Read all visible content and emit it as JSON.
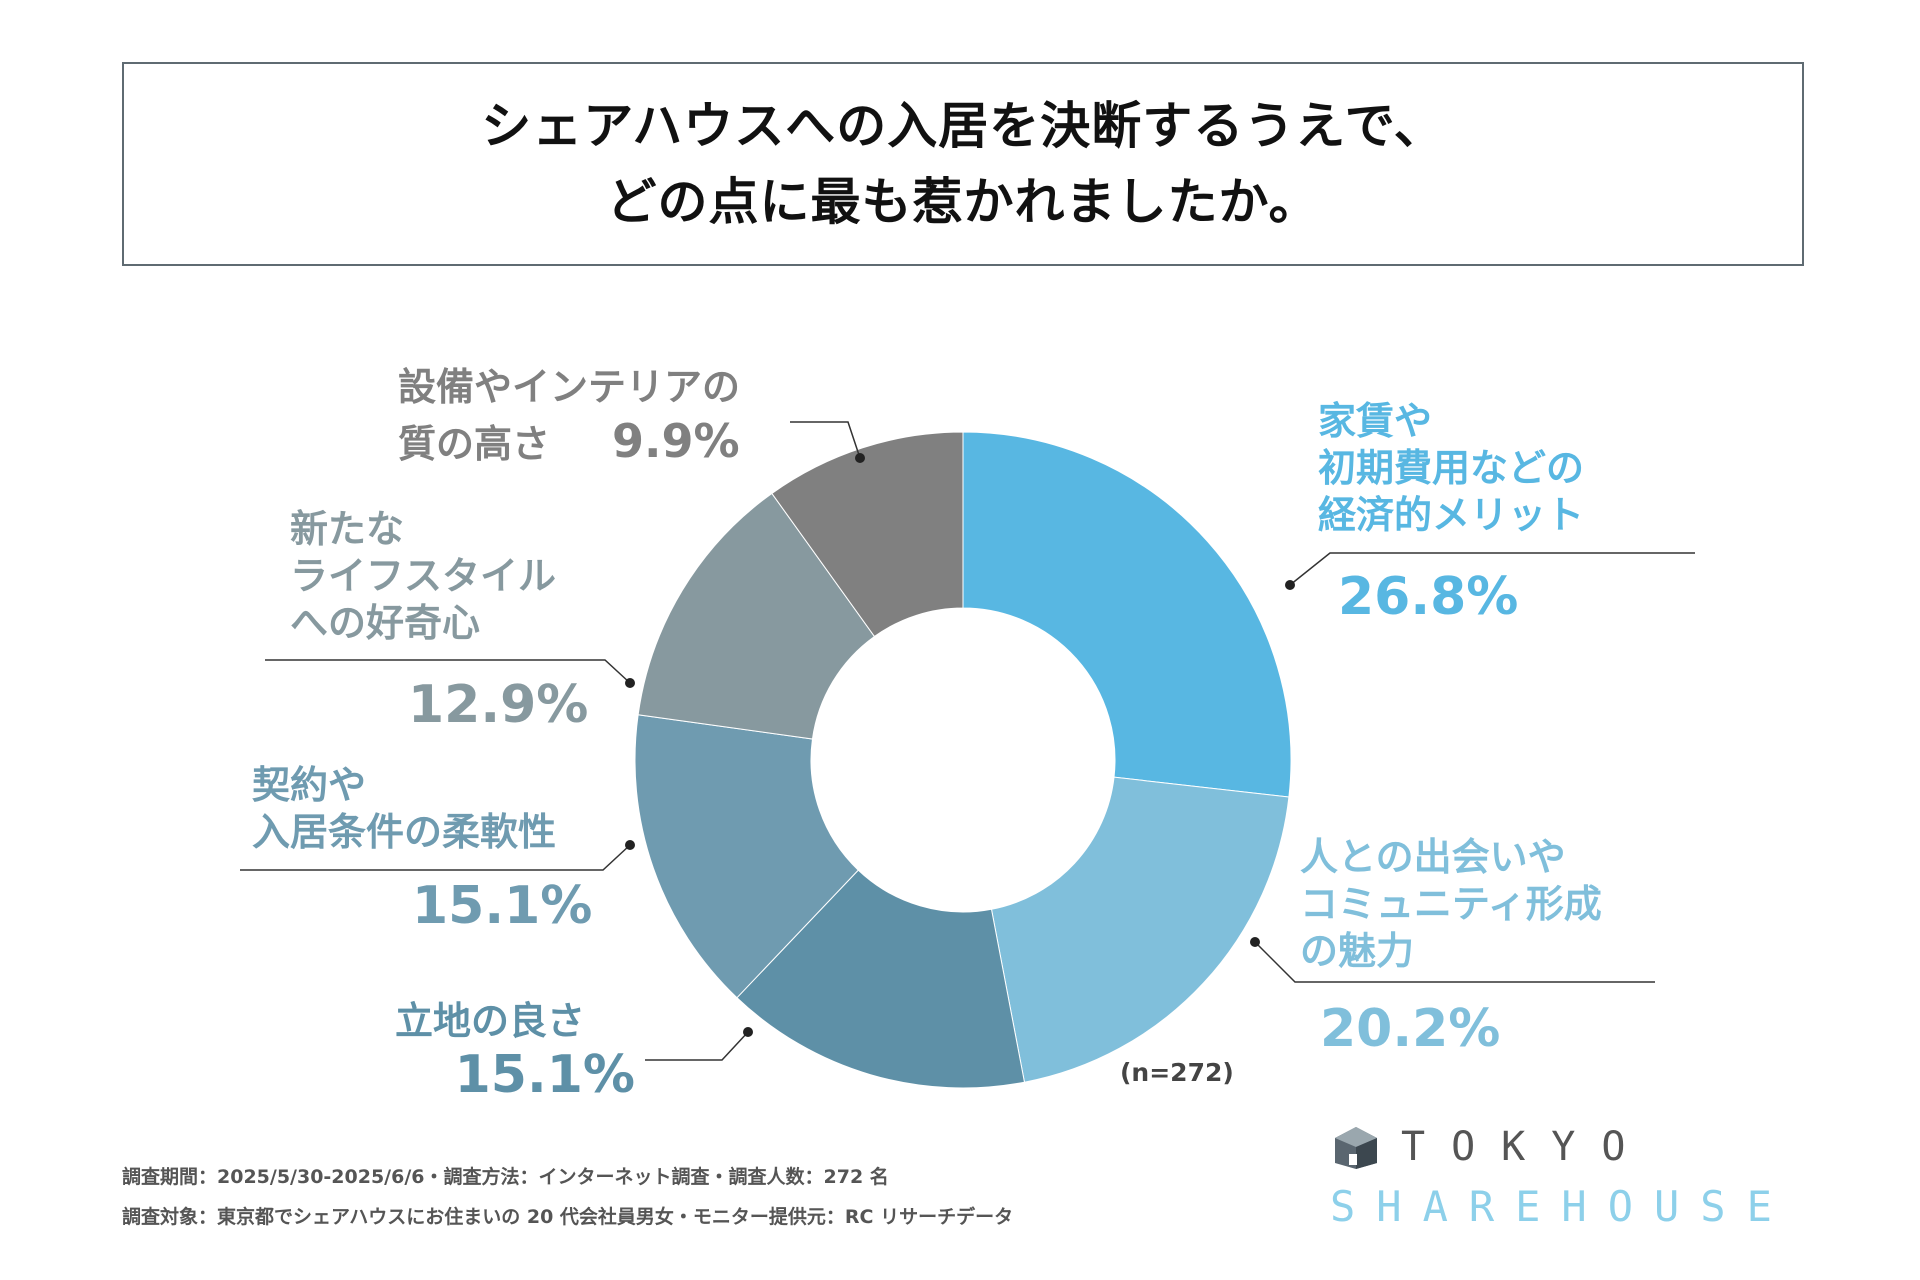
{
  "title": {
    "line1": "シェアハウスへの入居を決断するうえで、",
    "line2": "どの点に最も惹かれましたか。"
  },
  "chart_data": {
    "type": "pie",
    "donut": true,
    "title": "シェアハウスへの入居を決断するうえで、どの点に最も惹かれましたか。",
    "unit": "%",
    "n_label": "(n=272)",
    "slices": [
      {
        "label_lines": [
          "家賃や",
          "初期費用などの",
          "経済的メリット"
        ],
        "value": 26.8,
        "value_text": "26.8%",
        "color": "#58b7e2",
        "text_color": "#58b7e2"
      },
      {
        "label_lines": [
          "人との出会いや",
          "コミュニティ形成",
          "の魅力"
        ],
        "value": 20.2,
        "value_text": "20.2%",
        "color": "#80bfdb",
        "text_color": "#80bfdb"
      },
      {
        "label_lines": [
          "立地の良さ"
        ],
        "value": 15.1,
        "value_text": "15.1%",
        "color": "#5e90a7",
        "text_color": "#5e90a7"
      },
      {
        "label_lines": [
          "契約や",
          "入居条件の柔軟性"
        ],
        "value": 15.1,
        "value_text": "15.1%",
        "color": "#6f9bb0",
        "text_color": "#6f9bb0"
      },
      {
        "label_lines": [
          "新たな",
          "ライフスタイル",
          "への好奇心"
        ],
        "value": 12.9,
        "value_text": "12.9%",
        "color": "#87999f",
        "text_color": "#87999f"
      },
      {
        "label_lines": [
          "設備やインテリアの",
          "質の高さ"
        ],
        "value": 9.9,
        "value_text": "9.9%",
        "color": "#808080",
        "text_color": "#808080"
      }
    ]
  },
  "footer": {
    "line1": "調査期間：2025/5/30-2025/6/6・調査方法：インターネット調査・調査人数：272 名",
    "line2": "調査対象：東京都でシェアハウスにお住まいの 20 代会社員男女・モニター提供元：RC リサーチデータ"
  },
  "logo": {
    "line1": "TOKYO",
    "line2": "SHAREHOUSE",
    "icon": "house-cube-icon"
  }
}
